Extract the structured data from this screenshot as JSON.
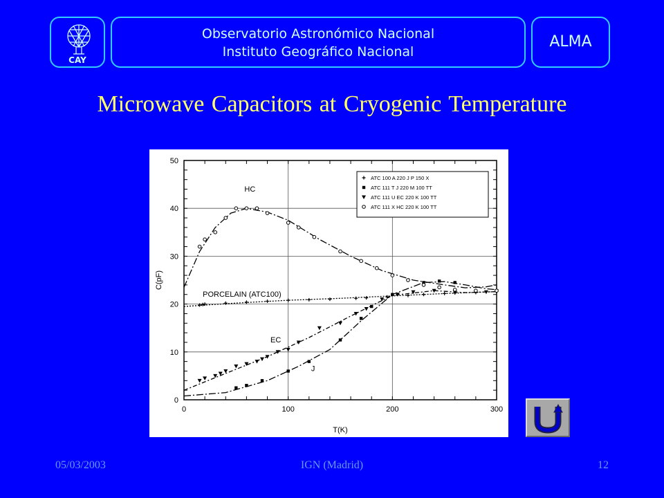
{
  "header": {
    "logo_text": "CAY",
    "institution_line1": "Observatorio Astronómico Nacional",
    "institution_line2": "Instituto Geográfico Nacional",
    "project": "ALMA"
  },
  "slide": {
    "title": "Microwave Capacitors at Cryogenic Temperature"
  },
  "footer": {
    "date": "05/03/2003",
    "center": "IGN (Madrid)",
    "page": "12"
  },
  "nav": {
    "return_icon": "u-turn-return-icon"
  },
  "colors": {
    "background": "#0000ff",
    "title": "#ffff66",
    "box_border": "#33ccff",
    "footer": "#6699ff"
  },
  "chart_data": {
    "type": "scatter",
    "xlabel": "T(K)",
    "ylabel": "C(pF)",
    "xlim": [
      0,
      300
    ],
    "ylim": [
      0,
      50
    ],
    "x_ticks": [
      0,
      100,
      200,
      300
    ],
    "y_ticks": [
      0,
      10,
      20,
      30,
      40,
      50
    ],
    "grid": true,
    "legend_position": "top-right",
    "annotations": [
      {
        "text": "HC",
        "x": 58,
        "y": 43.5
      },
      {
        "text": "PORCELAIN (ATC100)",
        "x": 18,
        "y": 21.5
      },
      {
        "text": "EC",
        "x": 83,
        "y": 12
      },
      {
        "text": "J",
        "x": 122,
        "y": 6
      }
    ],
    "series": [
      {
        "name": "ATC 100 A 220 J P 150 X",
        "marker": "plus",
        "points": [
          [
            15,
            19.8
          ],
          [
            18,
            19.9
          ],
          [
            20,
            20
          ],
          [
            40,
            20.2
          ],
          [
            60,
            20.4
          ],
          [
            80,
            20.6
          ],
          [
            100,
            20.8
          ],
          [
            120,
            20.9
          ],
          [
            140,
            21
          ],
          [
            165,
            21.2
          ],
          [
            175,
            21.3
          ],
          [
            195,
            21.5
          ],
          [
            215,
            21.8
          ],
          [
            230,
            22
          ],
          [
            250,
            22.2
          ],
          [
            260,
            22.3
          ],
          [
            280,
            22.4
          ],
          [
            300,
            22.6
          ]
        ],
        "fit": [
          [
            0,
            19.5
          ],
          [
            50,
            20.2
          ],
          [
            100,
            20.8
          ],
          [
            150,
            21.2
          ],
          [
            200,
            21.7
          ],
          [
            250,
            22.2
          ],
          [
            300,
            22.6
          ]
        ]
      },
      {
        "name": "ATC 111 T  J 220 M 100 TT",
        "marker": "square",
        "points": [
          [
            50,
            2.5
          ],
          [
            60,
            3
          ],
          [
            75,
            4
          ],
          [
            100,
            6
          ],
          [
            120,
            8
          ],
          [
            150,
            12.5
          ],
          [
            170,
            17
          ],
          [
            180,
            19.5
          ],
          [
            200,
            22
          ],
          [
            230,
            24.5
          ],
          [
            245,
            24.8
          ],
          [
            260,
            24.5
          ]
        ],
        "fit": [
          [
            0,
            0.8
          ],
          [
            40,
            1.5
          ],
          [
            80,
            4
          ],
          [
            110,
            7
          ],
          [
            140,
            10.5
          ],
          [
            170,
            16.5
          ],
          [
            200,
            22
          ],
          [
            230,
            24.5
          ],
          [
            250,
            24.7
          ],
          [
            270,
            24
          ],
          [
            290,
            23.2
          ],
          [
            300,
            23
          ]
        ]
      },
      {
        "name": "ATC 111 U EC 220 K 100 TT",
        "marker": "triangle-down",
        "points": [
          [
            15,
            4
          ],
          [
            20,
            4.5
          ],
          [
            30,
            5
          ],
          [
            35,
            5.5
          ],
          [
            40,
            6
          ],
          [
            50,
            7
          ],
          [
            60,
            7.5
          ],
          [
            70,
            8
          ],
          [
            75,
            8.5
          ],
          [
            80,
            9
          ],
          [
            90,
            10
          ],
          [
            100,
            10.5
          ],
          [
            110,
            12
          ],
          [
            130,
            15
          ],
          [
            150,
            16
          ],
          [
            165,
            18
          ],
          [
            175,
            19
          ],
          [
            190,
            21
          ],
          [
            205,
            22
          ],
          [
            220,
            22.5
          ],
          [
            240,
            22.8
          ],
          [
            260,
            22.5
          ],
          [
            290,
            22.5
          ],
          [
            300,
            22.7
          ]
        ],
        "fit": [
          [
            0,
            2
          ],
          [
            40,
            5.5
          ],
          [
            80,
            9
          ],
          [
            120,
            13
          ],
          [
            160,
            17.5
          ],
          [
            200,
            21.8
          ],
          [
            240,
            22.8
          ],
          [
            270,
            22.4
          ],
          [
            300,
            22.6
          ]
        ]
      },
      {
        "name": "ATC 111 X HC 220 K 100 TT",
        "marker": "circle",
        "points": [
          [
            15,
            32
          ],
          [
            20,
            33.5
          ],
          [
            30,
            35
          ],
          [
            40,
            38
          ],
          [
            50,
            40
          ],
          [
            60,
            40
          ],
          [
            70,
            40
          ],
          [
            80,
            39
          ],
          [
            100,
            37
          ],
          [
            110,
            36
          ],
          [
            125,
            34
          ],
          [
            150,
            31
          ],
          [
            170,
            29
          ],
          [
            185,
            27.5
          ],
          [
            200,
            26
          ],
          [
            215,
            25
          ],
          [
            230,
            24
          ],
          [
            245,
            23.5
          ],
          [
            260,
            23
          ],
          [
            280,
            22.8
          ],
          [
            300,
            22.8
          ]
        ],
        "fit": [
          [
            0,
            23.5
          ],
          [
            15,
            31
          ],
          [
            30,
            36
          ],
          [
            45,
            39
          ],
          [
            60,
            40
          ],
          [
            80,
            39.2
          ],
          [
            100,
            37.5
          ],
          [
            130,
            33.5
          ],
          [
            160,
            30
          ],
          [
            190,
            27
          ],
          [
            220,
            25
          ],
          [
            250,
            24
          ],
          [
            270,
            23.4
          ],
          [
            290,
            23.6
          ],
          [
            300,
            24
          ]
        ]
      }
    ]
  }
}
